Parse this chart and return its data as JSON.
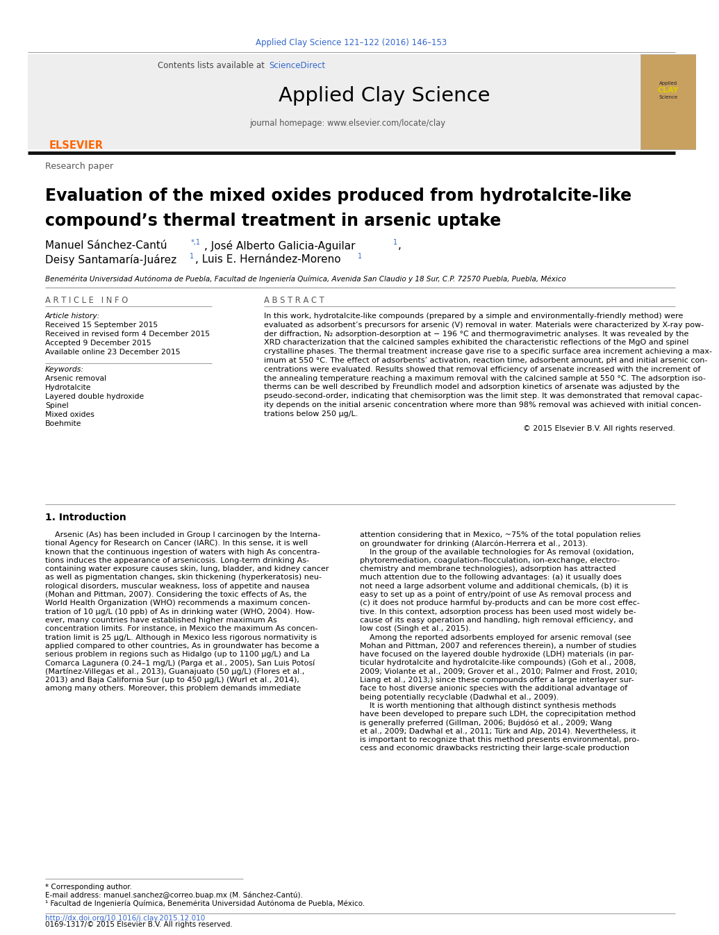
{
  "journal_ref": "Applied Clay Science 121–122 (2016) 146–153",
  "journal_ref_color": "#3366cc",
  "sciencedirect_text": "ScienceDirect",
  "sciencedirect_color": "#3366cc",
  "journal_name": "Applied Clay Science",
  "homepage_text": "journal homepage: www.elsevier.com/locate/clay",
  "section_label": "Research paper",
  "title_line1": "Evaluation of the mixed oxides produced from hydrotalcite-like",
  "title_line2": "compound’s thermal treatment in arsenic uptake",
  "affiliation": "Benemérita Universidad Autónoma de Puebla, Facultad de Ingeniería Química, Avenida San Claudio y 18 Sur, C.P. 72570 Puebla, Puebla, México",
  "article_info_header": "A R T I C L E   I N F O",
  "abstract_header": "A B S T R A C T",
  "article_history_label": "Article history:",
  "received_1": "Received 15 September 2015",
  "received_2": "Received in revised form 4 December 2015",
  "accepted": "Accepted 9 December 2015",
  "available": "Available online 23 December 2015",
  "keywords_label": "Keywords:",
  "keywords": [
    "Arsenic removal",
    "Hydrotalcite",
    "Layered double hydroxide",
    "Spinel",
    "Mixed oxides",
    "Boehmite"
  ],
  "abstract_lines": [
    "In this work, hydrotalcite-like compounds (prepared by a simple and environmentally-friendly method) were",
    "evaluated as adsorbent’s precursors for arsenic (V) removal in water. Materials were characterized by X-ray pow-",
    "der diffraction, N₂ adsorption-desorption at − 196 °C and thermogravimetric analyses. It was revealed by the",
    "XRD characterization that the calcined samples exhibited the characteristic reflections of the MgO and spinel",
    "crystalline phases. The thermal treatment increase gave rise to a specific surface area increment achieving a max-",
    "imum at 550 °C. The effect of adsorbents’ activation, reaction time, adsorbent amount, pH and initial arsenic con-",
    "centrations were evaluated. Results showed that removal efficiency of arsenate increased with the increment of",
    "the annealing temperature reaching a maximum removal with the calcined sample at 550 °C. The adsorption iso-",
    "therms can be well described by Freundlich model and adsorption kinetics of arsenate was adjusted by the",
    "pseudo-second-order, indicating that chemisorption was the limit step. It was demonstrated that removal capac-",
    "ity depends on the initial arsenic concentration where more than 98% removal was achieved with initial concen-",
    "trations below 250 μg/L."
  ],
  "copyright": "© 2015 Elsevier B.V. All rights reserved.",
  "intro_header": "1. Introduction",
  "intro_col1_lines": [
    "    Arsenic (As) has been included in Group I carcinogen by the Interna-",
    "tional Agency for Research on Cancer (IARC). In this sense, it is well",
    "known that the continuous ingestion of waters with high As concentra-",
    "tions induces the appearance of arsenicosis. Long-term drinking As-",
    "containing water exposure causes skin, lung, bladder, and kidney cancer",
    "as well as pigmentation changes, skin thickening (hyperkeratosis) neu-",
    "rological disorders, muscular weakness, loss of appetite and nausea",
    "(Mohan and Pittman, 2007). Considering the toxic effects of As, the",
    "World Health Organization (WHO) recommends a maximum concen-",
    "tration of 10 μg/L (10 ppb) of As in drinking water (WHO, 2004). How-",
    "ever, many countries have established higher maximum As",
    "concentration limits. For instance, in Mexico the maximum As concen-",
    "tration limit is 25 μg/L. Although in Mexico less rigorous normativity is",
    "applied compared to other countries, As in groundwater has become a",
    "serious problem in regions such as Hidalgo (up to 1100 μg/L) and La",
    "Comarca Lagunera (0.24–1 mg/L) (Parga et al., 2005), San Luis Potosí",
    "(Martínez-Villegas et al., 2013), Guanajuato (50 μg/L) (Flores et al.,",
    "2013) and Baja California Sur (up to 450 μg/L) (Wurl et al., 2014),",
    "among many others. Moreover, this problem demands immediate"
  ],
  "intro_col2_lines": [
    "attention considering that in Mexico, ~75% of the total population relies",
    "on groundwater for drinking (Alarcón-Herrera et al., 2013).",
    "    In the group of the available technologies for As removal (oxidation,",
    "phytoremediation, coagulation–flocculation, ion-exchange, electro-",
    "chemistry and membrane technologies), adsorption has attracted",
    "much attention due to the following advantages: (a) it usually does",
    "not need a large adsorbent volume and additional chemicals, (b) it is",
    "easy to set up as a point of entry/point of use As removal process and",
    "(c) it does not produce harmful by-products and can be more cost effec-",
    "tive. In this context, adsorption process has been used most widely be-",
    "cause of its easy operation and handling, high removal efficiency, and",
    "low cost (Singh et al., 2015).",
    "    Among the reported adsorbents employed for arsenic removal (see",
    "Mohan and Pittman, 2007 and references therein), a number of studies",
    "have focused on the layered double hydroxide (LDH) materials (in par-",
    "ticular hydrotalcite and hydrotalcite-like compounds) (Goh et al., 2008,",
    "2009; Violante et al., 2009; Grover et al., 2010; Palmer and Frost, 2010;",
    "Liang et al., 2013;) since these compounds offer a large interlayer sur-",
    "face to host diverse anionic species with the additional advantage of",
    "being potentially recyclable (Dadwhal et al., 2009).",
    "    It is worth mentioning that although distinct synthesis methods",
    "have been developed to prepare such LDH, the coprecipitation method",
    "is generally preferred (Gillman, 2006; Bujdósó et al., 2009; Wang",
    "et al., 2009; Dadwhal et al., 2011; Türk and Alp, 2014). Nevertheless, it",
    "is important to recognize that this method presents environmental, pro-",
    "cess and economic drawbacks restricting their large-scale production"
  ],
  "footnote_star": "* Corresponding author.",
  "footnote_email": "E-mail address: manuel.sanchez@correo.buap.mx (M. Sánchez-Cantú).",
  "footnote_1": "¹ Facultad de Ingeniería Química, Benemérita Universidad Autónoma de Puebla, México.",
  "doi_text": "http://dx.doi.org/10.1016/j.clay.2015.12.010",
  "issn_text": "0169-1317/© 2015 Elsevier B.V. All rights reserved.",
  "bg_color": "#ffffff",
  "link_color": "#3366cc",
  "text_color": "#000000",
  "gray_line_color": "#aaaaaa",
  "black_bar_color": "#111111",
  "header_bg": "#eeeeee",
  "elsevier_color": "#ff6600"
}
